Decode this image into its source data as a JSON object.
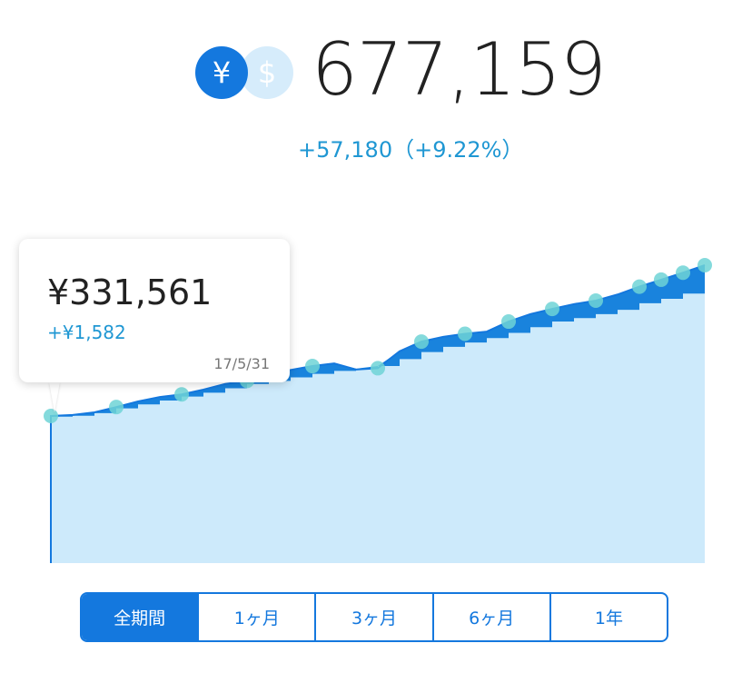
{
  "header": {
    "currency_jpy_symbol": "¥",
    "currency_usd_symbol": "$",
    "total_value": "677,159",
    "change": "+57,180（+9.22%）"
  },
  "tooltip": {
    "value": "¥331,561",
    "change": "+¥1,582",
    "date": "17/5/31"
  },
  "range_tabs": [
    {
      "label": "全期間",
      "active": true
    },
    {
      "label": "1ヶ月",
      "active": false
    },
    {
      "label": "3ヶ月",
      "active": false
    },
    {
      "label": "6ヶ月",
      "active": false
    },
    {
      "label": "1年",
      "active": false
    }
  ],
  "colors": {
    "accent": "#1478de",
    "change_text": "#1f97d3",
    "area_fill": "#cdeafb",
    "principal_fill": "#0f7ddb",
    "marker": "#6fd3d6"
  },
  "chart_data": {
    "type": "area",
    "series": [
      {
        "values": [
          331561,
          334000,
          340000,
          352000,
          365000,
          375000,
          381000,
          392000,
          405000,
          412000,
          425000,
          437000,
          446000,
          452000,
          438000,
          441000,
          480000,
          502000,
          513000,
          520000,
          525000,
          548000,
          565000,
          577000,
          588000,
          596000,
          610000,
          628000,
          644000,
          660000,
          677159
        ]
      },
      {
        "values": [
          330000,
          332000,
          338000,
          349000,
          358000,
          367000,
          376000,
          385000,
          395000,
          405000,
          412000,
          420000,
          428000,
          435000,
          440000,
          446000,
          462000,
          478000,
          490000,
          500000,
          510000,
          522000,
          535000,
          548000,
          556000,
          565000,
          575000,
          590000,
          600000,
          612000,
          620000
        ]
      }
    ],
    "markers_at_index": [
      0,
      3,
      6,
      9,
      12,
      15,
      17,
      19,
      21,
      23,
      25,
      27,
      28,
      29,
      30
    ]
  }
}
